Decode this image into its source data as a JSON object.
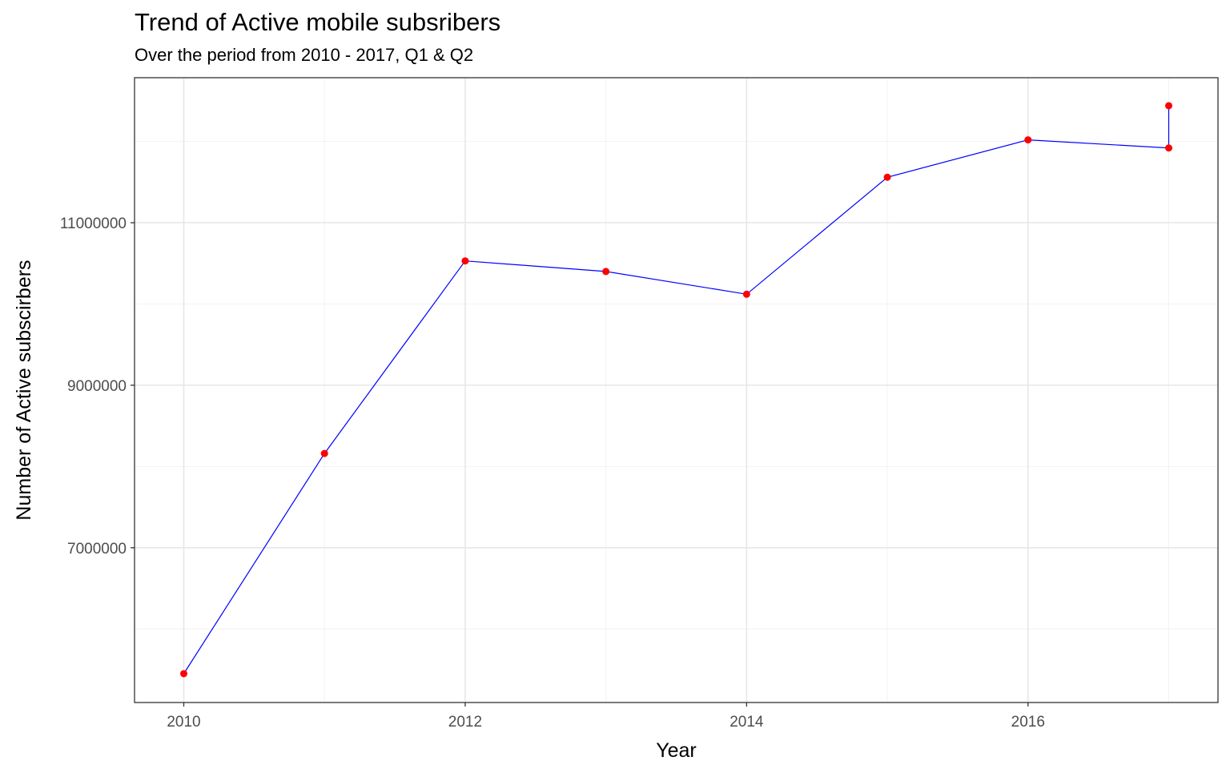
{
  "chart_data": {
    "type": "line",
    "title": "Trend of Active mobile subsribers",
    "subtitle": "Over the period from 2010 - 2017, Q1 & Q2",
    "xlabel": "Year",
    "ylabel": "Number of Active subscirbers",
    "xlim": [
      2009.65,
      2017.35
    ],
    "ylim": [
      5095000,
      12785000
    ],
    "x_ticks": [
      2010,
      2012,
      2014,
      2016
    ],
    "x_tick_labels": [
      "2010",
      "2012",
      "2014",
      "2016"
    ],
    "y_ticks": [
      7000000,
      9000000,
      11000000
    ],
    "y_tick_labels": [
      "7000000",
      "9000000",
      "11000000"
    ],
    "y_minor_ticks": [
      6000000,
      8000000,
      10000000,
      12000000
    ],
    "x_minor_ticks": [
      2011,
      2013,
      2015,
      2017
    ],
    "grid": true,
    "series": [
      {
        "x": [
          2010,
          2011,
          2012,
          2013,
          2014,
          2015,
          2016,
          2017,
          2017
        ],
        "values": [
          5450000,
          8160000,
          10530000,
          10400000,
          10120000,
          11560000,
          12020000,
          11920000,
          12440000
        ],
        "line_color": "#0000ff",
        "point_color": "#ff0000"
      }
    ]
  }
}
